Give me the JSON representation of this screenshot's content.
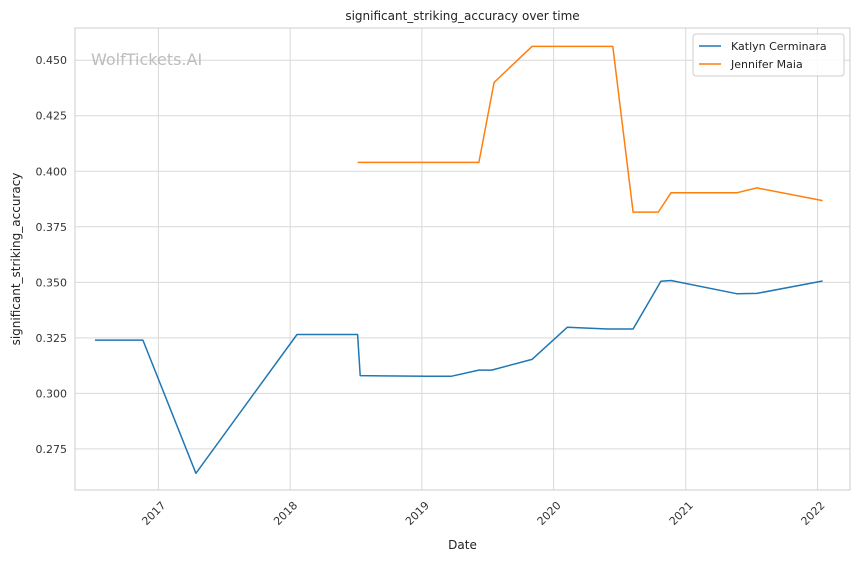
{
  "chart_data": {
    "type": "line",
    "title": "significant_striking_accuracy over time",
    "xlabel": "Date",
    "ylabel": "significant_striking_accuracy",
    "watermark": "WolfTickets.AI",
    "xlim": [
      "2016-05-15",
      "2022-04-01"
    ],
    "ylim": [
      0.2565,
      0.4645
    ],
    "x_ticks": [
      "2017-01-01",
      "2018-01-01",
      "2019-01-01",
      "2020-01-01",
      "2021-01-01",
      "2022-01-01"
    ],
    "x_tick_labels": [
      "2017",
      "2018",
      "2019",
      "2020",
      "2021",
      "2022"
    ],
    "y_ticks": [
      0.275,
      0.3,
      0.325,
      0.35,
      0.375,
      0.4,
      0.425,
      0.45
    ],
    "y_tick_labels": [
      "0.275",
      "0.300",
      "0.325",
      "0.350",
      "0.375",
      "0.400",
      "0.425",
      "0.450"
    ],
    "grid": true,
    "legend_position": "top-right",
    "series": [
      {
        "name": "Katlyn Cerminara",
        "color": "#1f77b4",
        "points": [
          [
            "2016-07-09",
            0.324
          ],
          [
            "2016-11-19",
            0.324
          ],
          [
            "2017-04-15",
            0.264
          ],
          [
            "2018-01-20",
            0.3265
          ],
          [
            "2018-07-07",
            0.3265
          ],
          [
            "2018-07-14",
            0.308
          ],
          [
            "2019-01-19",
            0.3077
          ],
          [
            "2019-03-23",
            0.3077
          ],
          [
            "2019-06-08",
            0.3105
          ],
          [
            "2019-07-13",
            0.3105
          ],
          [
            "2019-11-02",
            0.3153
          ],
          [
            "2020-02-08",
            0.3298
          ],
          [
            "2020-05-30",
            0.329
          ],
          [
            "2020-08-08",
            0.329
          ],
          [
            "2020-10-24",
            0.3505
          ],
          [
            "2020-11-21",
            0.3508
          ],
          [
            "2021-05-22",
            0.3449
          ],
          [
            "2021-07-17",
            0.345
          ],
          [
            "2022-01-15",
            0.3506
          ]
        ]
      },
      {
        "name": "Jennifer Maia",
        "color": "#ff7f0e",
        "points": [
          [
            "2018-07-07",
            0.404
          ],
          [
            "2019-06-08",
            0.404
          ],
          [
            "2019-07-20",
            0.44
          ],
          [
            "2019-11-02",
            0.4562
          ],
          [
            "2020-06-13",
            0.4562
          ],
          [
            "2020-08-08",
            0.3816
          ],
          [
            "2020-10-17",
            0.3816
          ],
          [
            "2020-11-21",
            0.3903
          ],
          [
            "2021-05-22",
            0.3903
          ],
          [
            "2021-07-17",
            0.3925
          ],
          [
            "2022-01-15",
            0.3868
          ]
        ]
      }
    ]
  }
}
